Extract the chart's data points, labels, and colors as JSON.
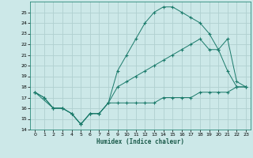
{
  "bg_color": "#cce8e8",
  "grid_color": "#b0d0d0",
  "line_color": "#1a7a6a",
  "xlabel": "Humidex (Indice chaleur)",
  "xlim": [
    0,
    23
  ],
  "ylim": [
    14,
    26
  ],
  "line1_x": [
    0,
    1,
    2,
    3,
    4,
    5,
    6,
    7,
    8,
    9,
    10,
    11,
    12,
    13,
    14,
    15,
    16,
    17,
    18,
    19,
    20,
    21,
    22,
    23
  ],
  "line1_y": [
    17.5,
    17.0,
    16.0,
    16.0,
    15.5,
    14.5,
    15.5,
    15.5,
    16.5,
    19.5,
    21.0,
    22.5,
    24.0,
    25.0,
    25.5,
    25.5,
    25.0,
    24.5,
    24.0,
    23.0,
    21.5,
    19.5,
    18.0,
    18.0
  ],
  "line2_x": [
    0,
    1,
    2,
    3,
    4,
    5,
    6,
    7,
    8,
    9,
    10,
    11,
    12,
    13,
    14,
    15,
    16,
    17,
    18,
    19,
    20,
    21,
    22,
    23
  ],
  "line2_y": [
    17.5,
    17.0,
    16.0,
    16.0,
    15.5,
    14.5,
    15.5,
    15.5,
    16.5,
    18.0,
    18.5,
    19.0,
    19.5,
    20.0,
    20.5,
    21.0,
    21.5,
    22.0,
    22.5,
    21.5,
    21.5,
    22.5,
    18.5,
    18.0
  ],
  "line3_x": [
    0,
    2,
    3,
    4,
    5,
    6,
    7,
    8,
    9,
    10,
    11,
    12,
    13,
    14,
    15,
    16,
    17,
    18,
    19,
    20,
    21,
    22,
    23
  ],
  "line3_y": [
    17.5,
    16.0,
    16.0,
    15.5,
    14.5,
    15.5,
    15.5,
    16.5,
    16.5,
    16.5,
    16.5,
    16.5,
    16.5,
    17.0,
    17.0,
    17.0,
    17.0,
    17.5,
    17.5,
    17.5,
    17.5,
    18.0,
    18.0
  ]
}
